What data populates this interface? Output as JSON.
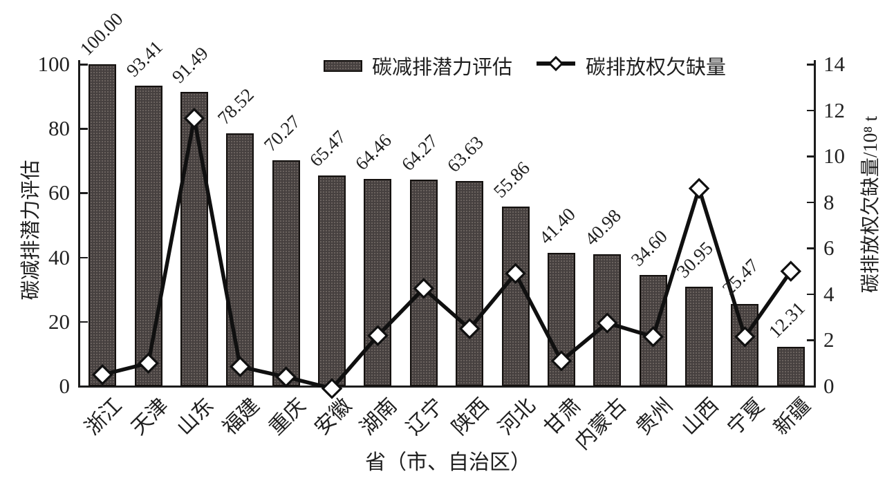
{
  "chart_data": {
    "type": "bar",
    "combo": true,
    "categories": [
      "浙江",
      "天津",
      "山东",
      "福建",
      "重庆",
      "安徽",
      "湖南",
      "辽宁",
      "陕西",
      "河北",
      "甘肃",
      "内蒙古",
      "贵州",
      "山西",
      "宁夏",
      "新疆"
    ],
    "series": [
      {
        "name": "碳减排潜力评估",
        "type": "bar",
        "yaxis": "left",
        "values": [
          100.0,
          93.41,
          91.49,
          78.52,
          70.27,
          65.47,
          64.46,
          64.27,
          63.63,
          55.86,
          41.4,
          40.98,
          34.6,
          30.95,
          25.47,
          12.31
        ],
        "data_labels": [
          "100.00",
          "93.41",
          "91.49",
          "78.52",
          "70.27",
          "65.47",
          "64.46",
          "64.27",
          "63.63",
          "55.86",
          "41.40",
          "40.98",
          "34.60",
          "30.95",
          "25.47",
          "12.31"
        ]
      },
      {
        "name": "碳排放权欠缺量",
        "type": "line",
        "yaxis": "right",
        "marker": "diamond",
        "values": [
          0.5,
          1.0,
          11.65,
          0.85,
          0.4,
          -0.1,
          2.2,
          4.25,
          2.5,
          4.9,
          1.1,
          2.75,
          2.15,
          8.6,
          2.15,
          5.0
        ]
      }
    ],
    "xlabel": "省（市、自治区）",
    "left_axis": {
      "label": "碳减排潜力评估",
      "min": 0,
      "max": 100,
      "ticks": [
        0,
        20,
        40,
        60,
        80,
        100
      ]
    },
    "right_axis": {
      "label": "碳排放权欠缺量/10⁸ t",
      "min": 0,
      "max": 14,
      "ticks": [
        0,
        2,
        4,
        6,
        8,
        10,
        12,
        14
      ]
    },
    "grid": false,
    "legend_position": "top-center"
  },
  "colors": {
    "background": "#ffffff",
    "bar_fill": "#46403f",
    "bar_border": "#14110f",
    "line": "#101010",
    "marker_fill": "#ffffff",
    "marker_stroke": "#101010",
    "axis": "#1c1c1c",
    "text": "#1f1f1f"
  }
}
